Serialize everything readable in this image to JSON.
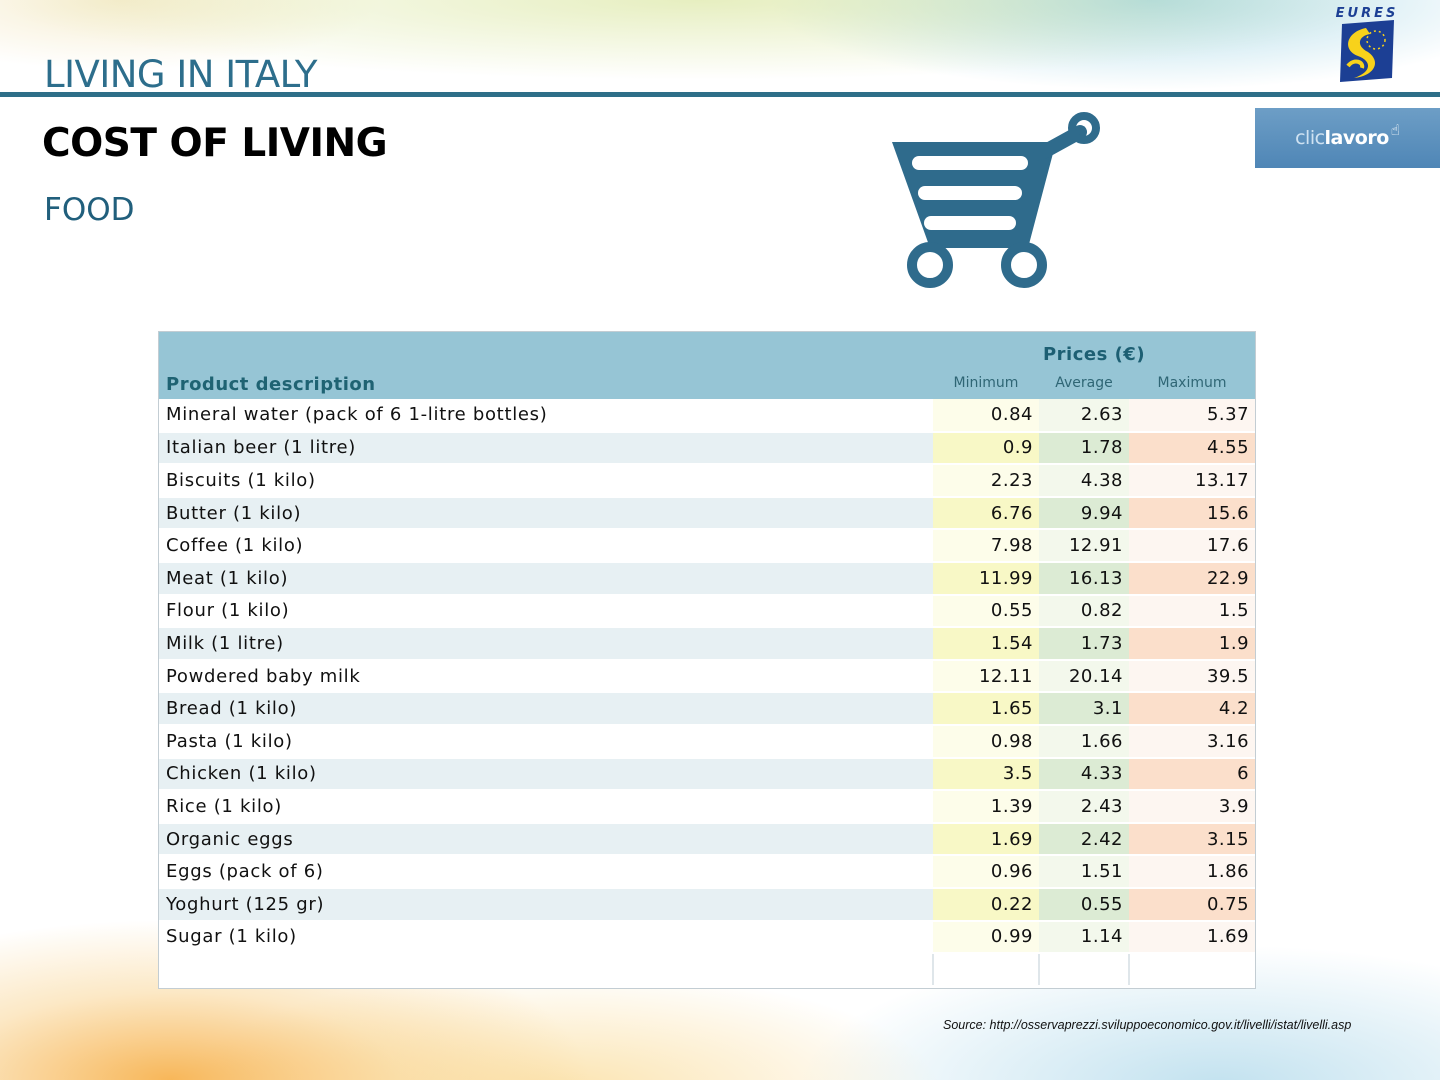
{
  "header": {
    "title": "LIVING IN ITALY",
    "subtitle": "COST OF LIVING",
    "section": "FOOD"
  },
  "logos": {
    "eures": "EURES",
    "cliclavoro_clic": "clic",
    "cliclavoro_lavoro": "lavoro"
  },
  "icons": {
    "cart": "shopping-cart-icon"
  },
  "colors": {
    "title_blue": "#2d6e8c",
    "header_line": "#2e6f88",
    "table_header": "#96c5d5"
  },
  "table": {
    "prices_title": "Prices (€)",
    "product_header": "Product description",
    "columns": {
      "min": "Minimum",
      "avg": "Average",
      "max": "Maximum"
    },
    "rows": [
      {
        "name": "Mineral water (pack of 6 1-litre bottles)",
        "min": "0.84",
        "avg": "2.63",
        "max": "5.37"
      },
      {
        "name": "Italian beer  (1 litre)",
        "min": "0.9",
        "avg": "1.78",
        "max": "4.55"
      },
      {
        "name": "Biscuits (1 kilo)",
        "min": "2.23",
        "avg": "4.38",
        "max": "13.17"
      },
      {
        "name": "Butter (1 kilo)",
        "min": "6.76",
        "avg": "9.94",
        "max": "15.6"
      },
      {
        "name": "Coffee (1 kilo)",
        "min": "7.98",
        "avg": "12.91",
        "max": "17.6"
      },
      {
        "name": "Meat (1 kilo)",
        "min": "11.99",
        "avg": "16.13",
        "max": "22.9"
      },
      {
        "name": "Flour (1 kilo)",
        "min": "0.55",
        "avg": "0.82",
        "max": "1.5"
      },
      {
        "name": "Milk (1 litre)",
        "min": "1.54",
        "avg": "1.73",
        "max": "1.9"
      },
      {
        "name": "Powdered baby milk",
        "min": "12.11",
        "avg": "20.14",
        "max": "39.5"
      },
      {
        "name": "Bread (1 kilo)",
        "min": "1.65",
        "avg": "3.1",
        "max": "4.2"
      },
      {
        "name": "Pasta (1 kilo)",
        "min": "0.98",
        "avg": "1.66",
        "max": "3.16"
      },
      {
        "name": "Chicken (1 kilo)",
        "min": "3.5",
        "avg": "4.33",
        "max": "6"
      },
      {
        "name": "Rice (1 kilo)",
        "min": "1.39",
        "avg": "2.43",
        "max": "3.9"
      },
      {
        "name": "Organic eggs",
        "min": "1.69",
        "avg": "2.42",
        "max": "3.15"
      },
      {
        "name": "Eggs (pack of 6)",
        "min": "0.96",
        "avg": "1.51",
        "max": "1.86"
      },
      {
        "name": "Yoghurt (125 gr)",
        "min": "0.22",
        "avg": "0.55",
        "max": "0.75"
      },
      {
        "name": "Sugar (1 kilo)",
        "min": "0.99",
        "avg": "1.14",
        "max": "1.69"
      }
    ]
  },
  "footer": {
    "source": "Source: http://osservaprezzi.sviluppoeconomico.gov.it/livelli/istat/livelli.asp"
  }
}
